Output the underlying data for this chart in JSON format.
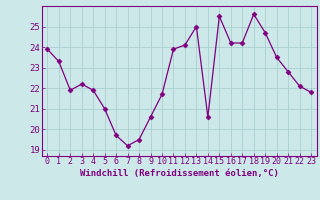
{
  "x": [
    0,
    1,
    2,
    3,
    4,
    5,
    6,
    7,
    8,
    9,
    10,
    11,
    12,
    13,
    14,
    15,
    16,
    17,
    18,
    19,
    20,
    21,
    22,
    23
  ],
  "y": [
    23.9,
    23.3,
    21.9,
    22.2,
    21.9,
    21.0,
    19.7,
    19.2,
    19.5,
    20.6,
    21.7,
    23.9,
    24.1,
    25.0,
    20.6,
    25.5,
    24.2,
    24.2,
    25.6,
    24.7,
    23.5,
    22.8,
    22.1,
    21.8
  ],
  "line_color": "#800080",
  "marker": "D",
  "marker_size": 2.5,
  "bg_color": "#cce8e8",
  "grid_color": "#aacfcf",
  "xlabel": "Windchill (Refroidissement éolien,°C)",
  "xlabel_color": "#800080",
  "yticks": [
    19,
    20,
    21,
    22,
    23,
    24,
    25
  ],
  "xticks": [
    0,
    1,
    2,
    3,
    4,
    5,
    6,
    7,
    8,
    9,
    10,
    11,
    12,
    13,
    14,
    15,
    16,
    17,
    18,
    19,
    20,
    21,
    22,
    23
  ],
  "ylim": [
    18.7,
    26.0
  ],
  "xlim": [
    -0.5,
    23.5
  ],
  "tick_color": "#800080",
  "spine_color": "#800080",
  "tick_fontsize": 6.0,
  "xlabel_fontsize": 6.5
}
